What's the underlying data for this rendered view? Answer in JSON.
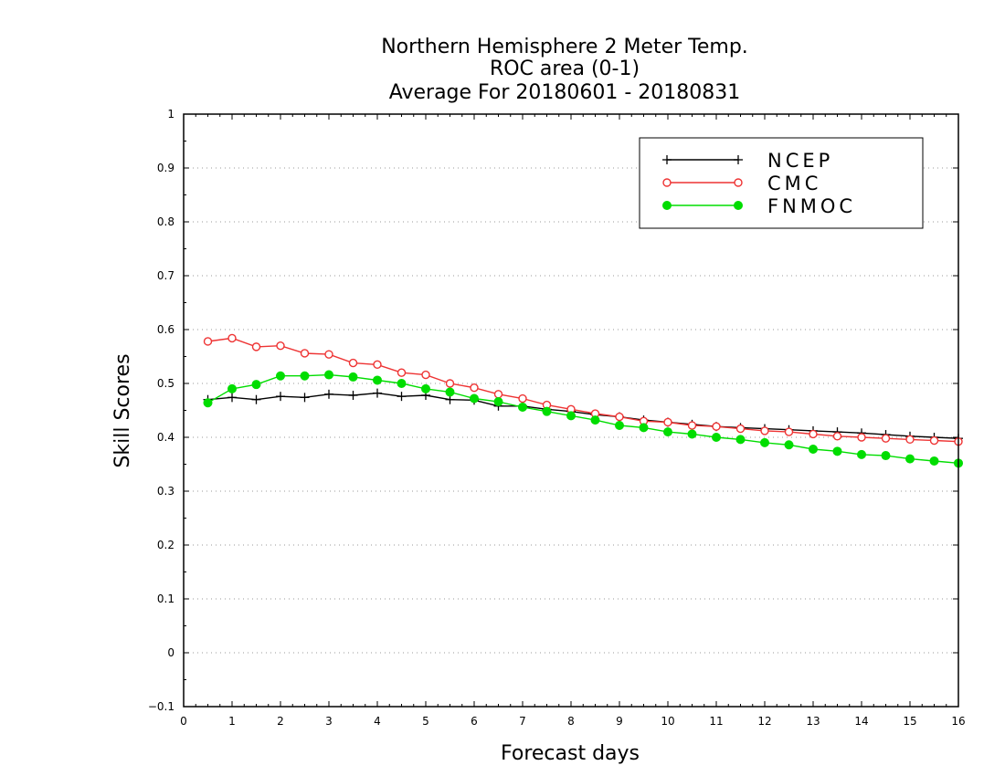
{
  "chart_data": {
    "type": "line",
    "title_lines": [
      "Northern Hemisphere 2 Meter Temp.",
      "ROC area (0-1)",
      "Average For 20180601 - 20180831"
    ],
    "xlabel": "Forecast days",
    "ylabel": "Skill Scores",
    "xlim": [
      0,
      16
    ],
    "ylim": [
      -0.1,
      1
    ],
    "x_ticks": [
      0,
      1,
      2,
      3,
      4,
      5,
      6,
      7,
      8,
      9,
      10,
      11,
      12,
      13,
      14,
      15,
      16
    ],
    "y_ticks": [
      -0.1,
      0,
      0.1,
      0.2,
      0.3,
      0.4,
      0.5,
      0.6,
      0.7,
      0.8,
      0.9,
      1
    ],
    "y_tick_labels": [
      "−0.1",
      "0",
      "0.1",
      "0.2",
      "0.3",
      "0.4",
      "0.5",
      "0.6",
      "0.7",
      "0.8",
      "0.9",
      "1"
    ],
    "grid": "horizontal dotted",
    "legend_position": "top-right",
    "x": [
      0.5,
      1,
      1.5,
      2,
      2.5,
      3,
      3.5,
      4,
      4.5,
      5,
      5.5,
      6,
      6.5,
      7,
      7.5,
      8,
      8.5,
      9,
      9.5,
      10,
      10.5,
      11,
      11.5,
      12,
      12.5,
      13,
      13.5,
      14,
      14.5,
      15,
      15.5,
      16
    ],
    "series": [
      {
        "name": "NCEP",
        "color": "#000000",
        "marker": "plus",
        "values": [
          0.47,
          0.474,
          0.47,
          0.476,
          0.474,
          0.48,
          0.478,
          0.482,
          0.476,
          0.478,
          0.47,
          0.469,
          0.458,
          0.458,
          0.452,
          0.448,
          0.442,
          0.438,
          0.432,
          0.428,
          0.424,
          0.42,
          0.418,
          0.416,
          0.414,
          0.412,
          0.41,
          0.408,
          0.405,
          0.402,
          0.4,
          0.398
        ]
      },
      {
        "name": "CMC",
        "color": "#ee3333",
        "marker": "open-circle",
        "values": [
          0.578,
          0.584,
          0.568,
          0.57,
          0.556,
          0.554,
          0.538,
          0.535,
          0.52,
          0.516,
          0.5,
          0.492,
          0.48,
          0.472,
          0.46,
          0.452,
          0.444,
          0.438,
          0.43,
          0.428,
          0.422,
          0.42,
          0.416,
          0.412,
          0.41,
          0.406,
          0.402,
          0.4,
          0.398,
          0.396,
          0.394,
          0.392
        ]
      },
      {
        "name": "FNMOC",
        "color": "#00dd00",
        "marker": "filled-circle",
        "values": [
          0.464,
          0.49,
          0.498,
          0.514,
          0.514,
          0.516,
          0.512,
          0.506,
          0.5,
          0.49,
          0.484,
          0.472,
          0.466,
          0.456,
          0.448,
          0.44,
          0.432,
          0.422,
          0.418,
          0.41,
          0.406,
          0.4,
          0.396,
          0.39,
          0.386,
          0.378,
          0.374,
          0.368,
          0.366,
          0.36,
          0.356,
          0.352
        ]
      }
    ]
  }
}
